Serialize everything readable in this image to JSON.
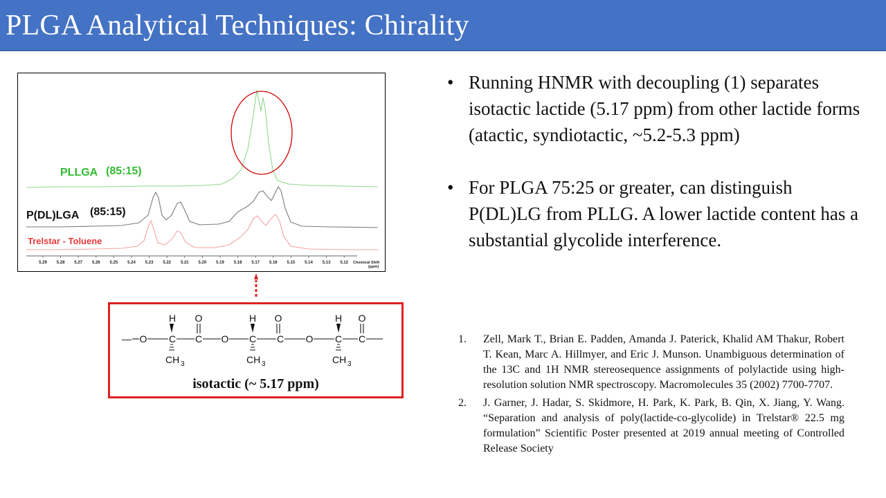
{
  "title": "PLGA Analytical Techniques: Chirality",
  "spectrum": {
    "labels": {
      "pllga": "PLLGA",
      "pllga_ratio": "(85:15)",
      "pdllga": "P(DL)LGA",
      "pdllga_ratio": "(85:15)",
      "trelstar": "Trelstar - Toluene"
    },
    "axis_ticks": [
      "5.29",
      "5.28",
      "5.27",
      "5.26",
      "5.25",
      "5.24",
      "5.23",
      "5.22",
      "5.21",
      "5.20",
      "5.19",
      "5.18",
      "5.17",
      "5.16",
      "5.15",
      "5.14",
      "5.13",
      "5.12"
    ],
    "axis_label_1": "Chemical Shift",
    "axis_label_2": "(ppm)",
    "colors": {
      "pllga": "#33bb33",
      "pdllga": "#222222",
      "trelstar": "#e83b3b",
      "highlight": "#cc0000"
    }
  },
  "structure": {
    "atoms": {
      "o": "O",
      "c": "C",
      "h": "H",
      "ch3": "CH",
      "ch3_sub": "3"
    },
    "caption": "isotactic (~ 5.17 ppm)"
  },
  "bullets": [
    "Running HNMR with decoupling (1) separates isotactic lactide (5.17 ppm) from other lactide forms (atactic, syndiotactic, ~5.2-5.3 ppm)",
    "For PLGA 75:25 or greater, can distinguish P(DL)LG from PLLG. A lower lactide content has a substantial glycolide interference."
  ],
  "bullet_glyph": "•",
  "references": [
    {
      "num": "1.",
      "text": "Zell, Mark T., Brian E. Padden, Amanda J. Paterick, Khalid AM Thakur, Robert T. Kean, Marc A. Hillmyer,  and Eric J. Munson. Unambiguous determination  of the 13C and 1H NMR stereosequence assignments of polylactide using high-resolution solution NMR spectroscopy. Macromolecules 35  (2002) 7700-7707."
    },
    {
      "num": "2.",
      "text": "J. Garner, J. Hadar, S. Skidmore, H. Park, K. Park, B. Qin, X. Jiang, Y. Wang. “Separation and analysis of poly(lactide-co-glycolide)  in Trelstar® 22.5 mg formulation”  Scientific Poster presented at 2019 annual meeting  of Controlled Release Society"
    }
  ]
}
